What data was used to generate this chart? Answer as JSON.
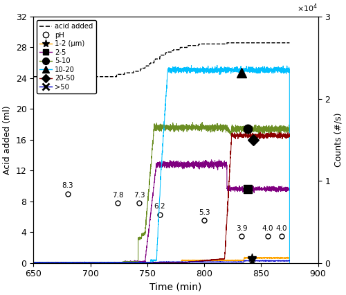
{
  "xlim": [
    650,
    900
  ],
  "ylim_left": [
    0,
    32
  ],
  "ylim_right": [
    0,
    30000
  ],
  "right_yticks": [
    0,
    10000,
    20000,
    30000
  ],
  "right_yticklabels": [
    "0",
    "1",
    "2",
    "3"
  ],
  "right_ylabel": "Counts (#/s)",
  "left_ylabel": "Acid added (ml)",
  "xlabel": "Time (min)",
  "left_yticks": [
    0,
    4,
    8,
    12,
    16,
    20,
    24,
    28,
    32
  ],
  "xticks": [
    650,
    700,
    750,
    800,
    850,
    900
  ],
  "line_colors": {
    "1-2": "#FFA500",
    "2-5": "#800080",
    "5-10": "#6B8E23",
    "10-20": "#00BFFF",
    "20-50": "#8B0000",
    ">50": "#0000CD"
  },
  "ph_points": [
    {
      "t": 680,
      "ph": "8.3",
      "y": 9.0
    },
    {
      "t": 724,
      "ph": "7.8",
      "y": 7.8
    },
    {
      "t": 743,
      "ph": "7.3",
      "y": 7.8
    },
    {
      "t": 761,
      "ph": "6.2",
      "y": 6.3
    },
    {
      "t": 800,
      "ph": "5.3",
      "y": 5.5
    },
    {
      "t": 833,
      "ph": "3.9",
      "y": 3.5
    },
    {
      "t": 856,
      "ph": "4.0",
      "y": 3.5
    },
    {
      "t": 868,
      "ph": "4.0",
      "y": 3.5
    }
  ]
}
